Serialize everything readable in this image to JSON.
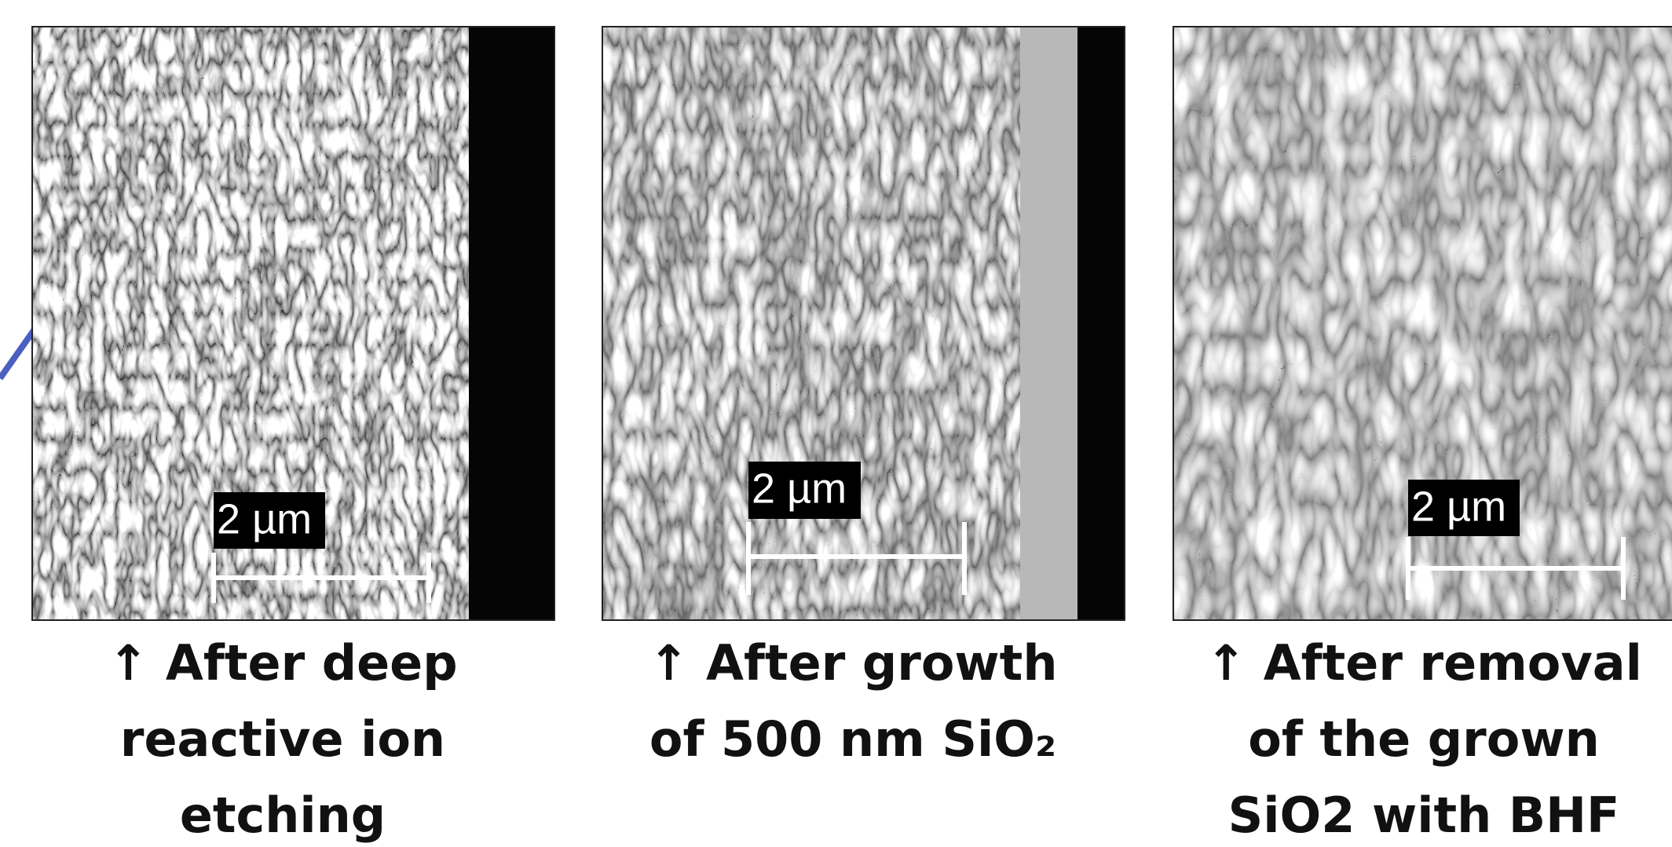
{
  "panels": [
    {
      "scale_bar": "2 µm",
      "caption": [
        "↑ After deep",
        "reactive ion",
        "etching"
      ]
    },
    {
      "scale_bar": "2 µm",
      "caption": [
        "↑ After growth",
        "of 500 nm SiO₂"
      ]
    },
    {
      "scale_bar": "2 µm",
      "caption": [
        "↑ After removal",
        "of the grown",
        "SiO2 with BHF"
      ]
    }
  ]
}
